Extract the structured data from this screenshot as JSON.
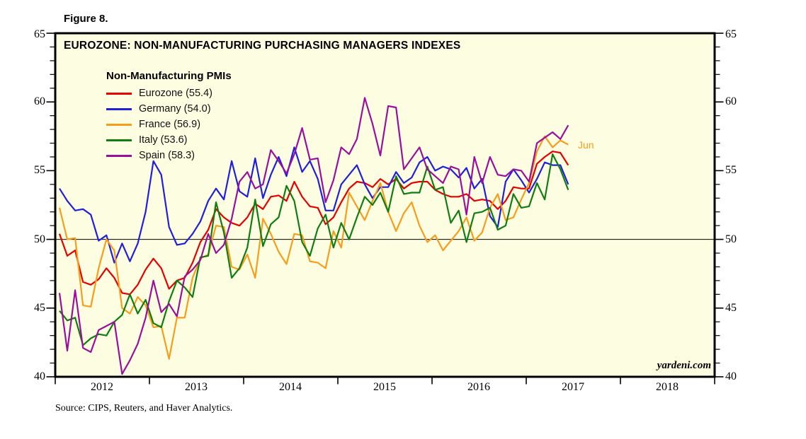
{
  "figure_label": "Figure 8.",
  "title": "EUROZONE: NON-MANUFACTURING PURCHASING MANAGERS INDEXES",
  "watermark": "yardeni.com",
  "source": "Source: CIPS, Reuters, and Haver Analytics.",
  "annotation": {
    "last_month_label": "Jun"
  },
  "colors": {
    "plot_background": "#fdfde1",
    "border": "#000000",
    "eurozone": "#e60000",
    "germany": "#1f1fdd",
    "france": "#f89c1c",
    "italy": "#0f7d12",
    "spain": "#9b109b"
  },
  "legend": {
    "title": "Non-Manufacturing PMIs",
    "items": [
      {
        "label": "Eurozone (55.4)"
      },
      {
        "label": "Germany (54.0)"
      },
      {
        "label": "France (56.9)"
      },
      {
        "label": "Italy (53.6)"
      },
      {
        "label": "Spain (58.3)"
      }
    ]
  },
  "y_axis": {
    "min": 40,
    "max": 65,
    "major_step": 5,
    "minor_step": 1,
    "tick_labels": [
      "65",
      "60",
      "55",
      "50",
      "45",
      "40"
    ],
    "reference_line": 50
  },
  "x_axis": {
    "year_labels": [
      "2012",
      "2013",
      "2014",
      "2015",
      "2016",
      "2017",
      "2018"
    ]
  },
  "chart_data": {
    "type": "line",
    "title": "EUROZONE: NON-MANUFACTURING PURCHASING MANAGERS INDEXES",
    "frequency": "monthly",
    "x_start": "2012-01",
    "x_end": "2017-06",
    "ylim": [
      40,
      65
    ],
    "reference_line": 50,
    "grid": false,
    "legend_position": "top-left-inside",
    "series": [
      {
        "name": "Eurozone",
        "last_value": 55.4,
        "color": "#e60000",
        "values": [
          50.4,
          48.8,
          49.2,
          46.9,
          46.7,
          47.1,
          47.9,
          47.2,
          46.1,
          46.0,
          46.7,
          47.8,
          48.6,
          47.9,
          46.4,
          47.0,
          47.2,
          48.3,
          49.8,
          50.7,
          52.2,
          51.6,
          51.2,
          51.0,
          51.6,
          52.6,
          52.2,
          53.1,
          53.2,
          52.8,
          54.2,
          53.1,
          52.4,
          52.3,
          51.1,
          51.6,
          52.7,
          53.7,
          54.2,
          54.1,
          53.8,
          54.4,
          54.0,
          54.4,
          53.7,
          54.1,
          54.2,
          54.2,
          53.6,
          53.3,
          53.1,
          53.1,
          53.3,
          52.8,
          52.9,
          52.8,
          52.2,
          52.8,
          53.8,
          53.7,
          53.7,
          55.5,
          56.0,
          56.4,
          56.3,
          55.4
        ]
      },
      {
        "name": "Germany",
        "last_value": 54.0,
        "color": "#1f1fdd",
        "values": [
          53.7,
          52.8,
          52.1,
          52.2,
          51.8,
          49.9,
          50.3,
          48.3,
          49.7,
          48.4,
          49.7,
          52.0,
          55.7,
          54.7,
          50.9,
          49.6,
          49.7,
          50.4,
          51.3,
          52.8,
          53.7,
          52.9,
          55.7,
          53.5,
          53.1,
          55.9,
          53.0,
          54.7,
          56.0,
          54.6,
          56.7,
          54.9,
          55.7,
          54.4,
          52.1,
          52.1,
          54.0,
          54.7,
          55.4,
          54.0,
          53.0,
          53.8,
          53.8,
          54.9,
          54.1,
          54.5,
          55.6,
          56.0,
          55.0,
          55.3,
          55.1,
          54.5,
          55.2,
          53.7,
          54.4,
          51.7,
          50.9,
          54.2,
          55.1,
          54.3,
          53.4,
          54.4,
          55.6,
          55.4,
          55.4,
          54.0
        ]
      },
      {
        "name": "France",
        "last_value": 56.9,
        "color": "#f89c1c",
        "values": [
          52.3,
          50.0,
          50.1,
          45.2,
          45.1,
          47.9,
          50.0,
          49.2,
          45.0,
          44.6,
          45.8,
          45.2,
          43.6,
          43.7,
          41.3,
          44.3,
          44.3,
          47.2,
          48.6,
          48.9,
          51.0,
          50.9,
          48.0,
          47.8,
          48.9,
          47.2,
          51.5,
          50.4,
          49.1,
          48.2,
          50.4,
          50.3,
          48.4,
          48.3,
          47.9,
          50.6,
          49.4,
          53.4,
          52.4,
          51.4,
          52.8,
          54.1,
          52.0,
          50.6,
          51.9,
          52.7,
          51.0,
          49.8,
          50.3,
          49.2,
          49.9,
          50.6,
          51.6,
          49.9,
          50.5,
          52.3,
          53.3,
          51.4,
          51.6,
          52.9,
          54.1,
          56.4,
          57.5,
          56.7,
          57.2,
          56.9
        ]
      },
      {
        "name": "Italy",
        "last_value": 53.6,
        "color": "#0f7d12",
        "values": [
          44.8,
          44.1,
          44.3,
          42.3,
          42.8,
          43.1,
          43.0,
          44.0,
          44.5,
          46.0,
          44.6,
          45.6,
          43.9,
          43.6,
          45.5,
          47.0,
          46.5,
          45.8,
          48.7,
          48.8,
          52.7,
          50.5,
          47.2,
          47.9,
          49.4,
          52.9,
          49.5,
          51.1,
          51.6,
          53.9,
          52.8,
          49.8,
          48.8,
          50.8,
          51.8,
          49.4,
          51.2,
          50.0,
          51.6,
          53.1,
          52.5,
          53.4,
          52.0,
          54.6,
          53.3,
          53.4,
          53.4,
          55.3,
          53.6,
          53.8,
          51.2,
          52.1,
          49.8,
          51.9,
          52.0,
          52.3,
          50.7,
          51.0,
          53.3,
          52.3,
          52.4,
          54.1,
          52.9,
          56.2,
          55.1,
          53.6
        ]
      },
      {
        "name": "Spain",
        "last_value": 58.3,
        "color": "#9b109b",
        "values": [
          46.1,
          41.9,
          46.3,
          42.1,
          41.8,
          43.4,
          43.7,
          44.0,
          40.2,
          41.2,
          42.4,
          44.3,
          47.0,
          44.7,
          45.3,
          44.4,
          47.3,
          47.8,
          48.5,
          50.4,
          49.0,
          49.6,
          51.5,
          54.2,
          54.9,
          53.7,
          54.0,
          56.5,
          55.7,
          54.8,
          56.2,
          58.1,
          55.8,
          55.9,
          52.7,
          54.3,
          56.7,
          56.2,
          57.3,
          60.3,
          58.4,
          56.1,
          59.7,
          59.6,
          55.1,
          55.9,
          56.7,
          55.1,
          54.6,
          54.1,
          55.3,
          55.1,
          51.8,
          56.0,
          54.1,
          56.0,
          54.7,
          54.6,
          55.1,
          55.0,
          54.2,
          57.0,
          57.4,
          57.8,
          57.3,
          58.3
        ]
      }
    ]
  }
}
